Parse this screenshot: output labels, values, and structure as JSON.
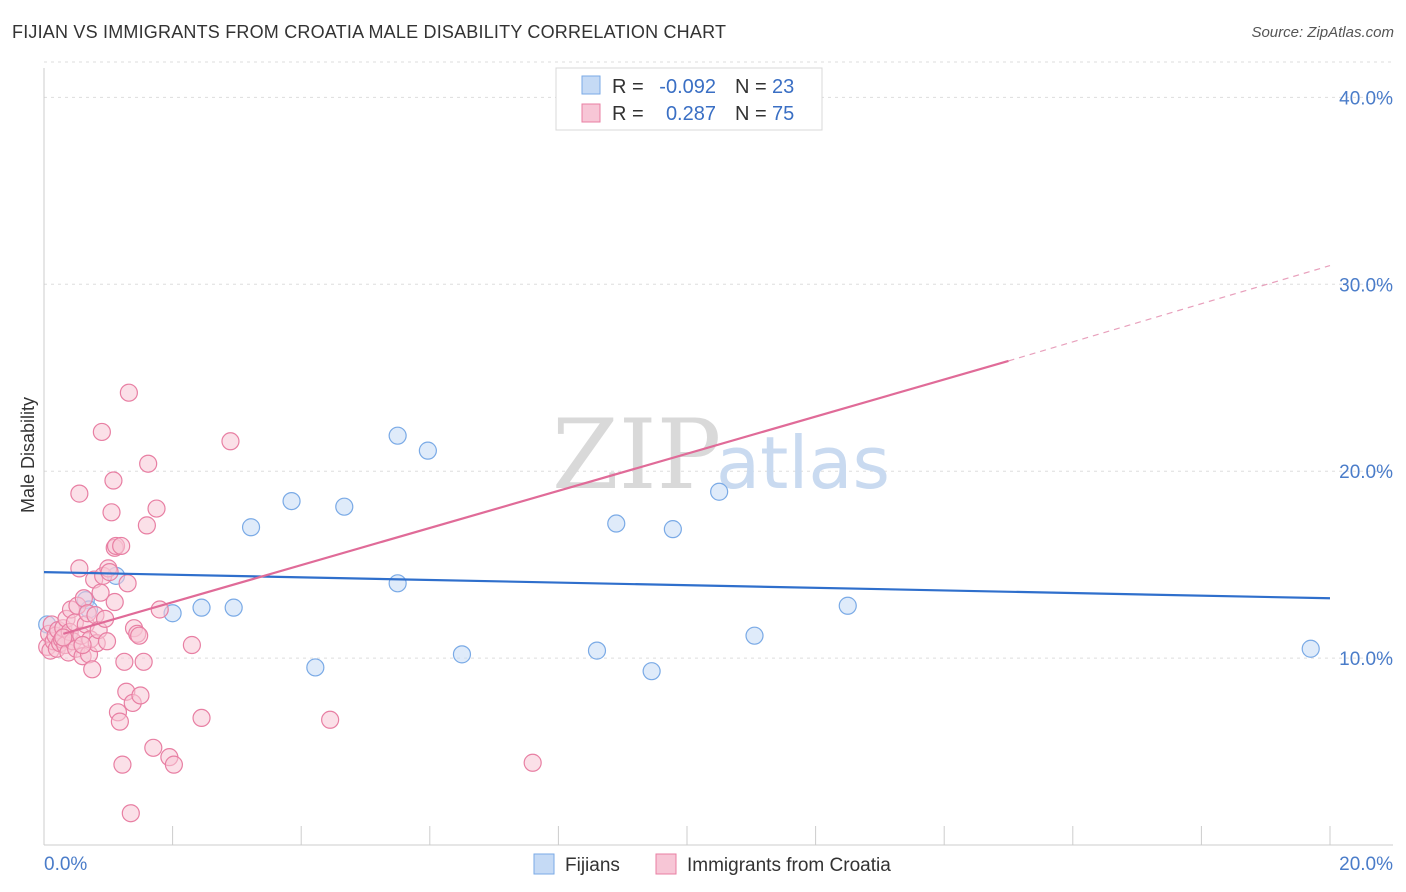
{
  "chart_data": {
    "type": "scatter",
    "title": "FIJIAN VS IMMIGRANTS FROM CROATIA MALE DISABILITY CORRELATION CHART",
    "source": "Source: ZipAtlas.com",
    "xlabel": "",
    "ylabel": "Male Disability",
    "xlim": [
      0,
      20
    ],
    "ylim": [
      0,
      42
    ],
    "x_tick_labels": {
      "left": "0.0%",
      "right": "20.0%"
    },
    "x_minor_ticks": [
      0,
      2,
      4,
      6,
      8,
      10,
      12,
      14,
      16,
      18,
      20
    ],
    "y_ticks": [
      {
        "value": 10,
        "label": "10.0%"
      },
      {
        "value": 20,
        "label": "20.0%"
      },
      {
        "value": 30,
        "label": "30.0%"
      },
      {
        "value": 40,
        "label": "40.0%"
      }
    ],
    "watermark": {
      "part1": "ZIP",
      "part2": "atlas"
    },
    "legend_top": [
      {
        "r_label": "R =",
        "r_value": "-0.092",
        "n_label": "N =",
        "n_value": "23"
      },
      {
        "r_label": "R =",
        "r_value": "0.287",
        "n_label": "N =",
        "n_value": "75"
      }
    ],
    "series": [
      {
        "name": "Fijians",
        "color": "#7aaae6",
        "fill": "#c5daf5",
        "trend": {
          "x0": 0,
          "y0": 14.6,
          "x1": 20,
          "y1": 13.2,
          "dashed_to": null
        },
        "points": [
          [
            0.05,
            11.8
          ],
          [
            0.65,
            13.1
          ],
          [
            1.12,
            14.4
          ],
          [
            0.7,
            12.6
          ],
          [
            2.0,
            12.4
          ],
          [
            2.45,
            12.7
          ],
          [
            2.95,
            12.7
          ],
          [
            3.22,
            17.0
          ],
          [
            3.85,
            18.4
          ],
          [
            4.22,
            9.5
          ],
          [
            4.67,
            18.1
          ],
          [
            5.5,
            14.0
          ],
          [
            5.5,
            21.9
          ],
          [
            5.97,
            21.1
          ],
          [
            6.5,
            10.2
          ],
          [
            8.6,
            10.4
          ],
          [
            8.9,
            17.2
          ],
          [
            9.45,
            9.3
          ],
          [
            9.78,
            16.9
          ],
          [
            10.5,
            18.9
          ],
          [
            11.05,
            11.2
          ],
          [
            12.5,
            12.8
          ],
          [
            19.7,
            10.5
          ]
        ]
      },
      {
        "name": "Immigrants from Croatia",
        "color": "#e87fa3",
        "fill": "#f7c6d6",
        "trend": {
          "x0": 0.3,
          "y0": 11.3,
          "x1": 15.0,
          "y1": 25.9,
          "dash_x1": 20.0,
          "dash_y1": 31.0
        },
        "points": [
          [
            0.05,
            10.6
          ],
          [
            0.08,
            11.3
          ],
          [
            0.1,
            10.4
          ],
          [
            0.12,
            11.8
          ],
          [
            0.15,
            10.9
          ],
          [
            0.18,
            11.2
          ],
          [
            0.2,
            10.5
          ],
          [
            0.22,
            11.5
          ],
          [
            0.25,
            10.8
          ],
          [
            0.28,
            11.0
          ],
          [
            0.3,
            11.6
          ],
          [
            0.33,
            10.7
          ],
          [
            0.35,
            12.1
          ],
          [
            0.38,
            10.3
          ],
          [
            0.4,
            11.4
          ],
          [
            0.42,
            12.6
          ],
          [
            0.45,
            10.9
          ],
          [
            0.48,
            11.9
          ],
          [
            0.5,
            10.5
          ],
          [
            0.52,
            12.8
          ],
          [
            0.55,
            14.8
          ],
          [
            0.55,
            18.8
          ],
          [
            0.58,
            11.2
          ],
          [
            0.6,
            10.1
          ],
          [
            0.62,
            13.2
          ],
          [
            0.65,
            11.8
          ],
          [
            0.68,
            12.4
          ],
          [
            0.7,
            10.2
          ],
          [
            0.72,
            11.0
          ],
          [
            0.75,
            9.4
          ],
          [
            0.78,
            14.2
          ],
          [
            0.8,
            12.3
          ],
          [
            0.82,
            10.8
          ],
          [
            0.85,
            11.5
          ],
          [
            0.88,
            13.5
          ],
          [
            0.9,
            22.1
          ],
          [
            0.92,
            14.4
          ],
          [
            0.95,
            12.1
          ],
          [
            0.98,
            10.9
          ],
          [
            1.0,
            14.8
          ],
          [
            1.02,
            14.6
          ],
          [
            1.05,
            17.8
          ],
          [
            1.08,
            19.5
          ],
          [
            1.1,
            15.9
          ],
          [
            1.12,
            16.0
          ],
          [
            1.15,
            7.1
          ],
          [
            1.18,
            6.6
          ],
          [
            1.2,
            16.0
          ],
          [
            1.22,
            4.3
          ],
          [
            1.25,
            9.8
          ],
          [
            1.28,
            8.2
          ],
          [
            1.3,
            14.0
          ],
          [
            1.32,
            24.2
          ],
          [
            1.35,
            1.7
          ],
          [
            1.38,
            7.6
          ],
          [
            1.4,
            11.6
          ],
          [
            1.45,
            11.3
          ],
          [
            1.48,
            11.2
          ],
          [
            1.5,
            8.0
          ],
          [
            1.55,
            9.8
          ],
          [
            1.6,
            17.1
          ],
          [
            1.62,
            20.4
          ],
          [
            1.7,
            5.2
          ],
          [
            1.75,
            18.0
          ],
          [
            1.8,
            12.6
          ],
          [
            1.95,
            4.7
          ],
          [
            2.02,
            4.3
          ],
          [
            2.3,
            10.7
          ],
          [
            2.45,
            6.8
          ],
          [
            2.9,
            21.6
          ],
          [
            4.45,
            6.7
          ],
          [
            7.6,
            4.4
          ],
          [
            1.1,
            13.0
          ],
          [
            0.3,
            11.1
          ],
          [
            0.6,
            10.7
          ]
        ]
      }
    ]
  }
}
